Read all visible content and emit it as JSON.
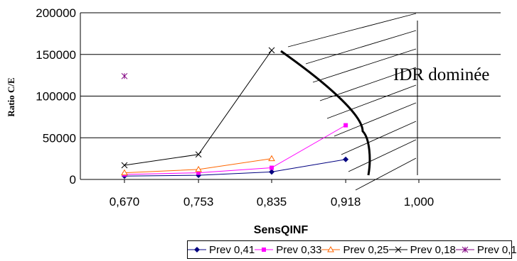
{
  "chart_data": {
    "type": "line",
    "title": "",
    "xlabel": "SensQINF",
    "ylabel": "Ratio C/E",
    "categories": [
      "0,670",
      "0,753",
      "0,835",
      "0,918",
      "1,000"
    ],
    "ylim": [
      0,
      200000
    ],
    "yticks": [
      "0",
      "50000",
      "100000",
      "150000",
      "200000"
    ],
    "grid": "horizontal",
    "legend_position": "bottom",
    "series": [
      {
        "name": "Prev 0,41",
        "color": "#000080",
        "marker": "diamond",
        "points": [
          [
            0.67,
            4000
          ],
          [
            0.753,
            5000
          ],
          [
            0.835,
            9000
          ],
          [
            0.918,
            24000
          ]
        ]
      },
      {
        "name": "Prev 0,33",
        "color": "#ff00ff",
        "marker": "square",
        "points": [
          [
            0.67,
            6000
          ],
          [
            0.753,
            8000
          ],
          [
            0.835,
            14000
          ],
          [
            0.918,
            65000
          ]
        ]
      },
      {
        "name": "Prev 0,25",
        "color": "#ff6600",
        "marker": "triangle",
        "points": [
          [
            0.67,
            8000
          ],
          [
            0.753,
            12000
          ],
          [
            0.835,
            25000
          ]
        ]
      },
      {
        "name": "Prev 0,18",
        "color": "#000000",
        "marker": "x",
        "points": [
          [
            0.67,
            17000
          ],
          [
            0.753,
            30000
          ],
          [
            0.835,
            155000
          ]
        ]
      },
      {
        "name": "Prev 0,1",
        "color": "#800080",
        "marker": "star",
        "points": [
          [
            0.67,
            124000
          ]
        ]
      }
    ],
    "annotation": "IDR dominée"
  }
}
